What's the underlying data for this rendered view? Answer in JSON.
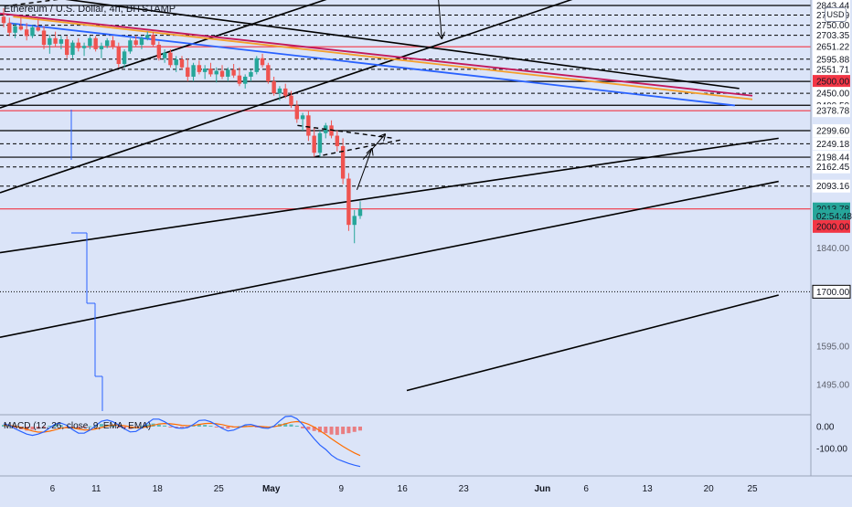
{
  "header": {
    "title": "Ethereum / U.S. Dollar, 4h, BITSTAMP",
    "currency": "USD"
  },
  "macd": {
    "title": "MACD (12, 26, close, 9, EMA, EMA)",
    "ticks": [
      "0.00",
      "-100.00"
    ]
  },
  "colors": {
    "background": "#dbe4f8",
    "up": "#26a69a",
    "down": "#ef5350",
    "red_line": "#f23645",
    "magenta_line": "#c2185b",
    "orange_line": "#f59f2b",
    "blue_line": "#2962ff",
    "trend_line": "#000000",
    "macd_line": "#2962ff",
    "signal_line": "#ff6d00"
  },
  "chart_data": {
    "type": "candlestick",
    "title": "Ethereum / U.S. Dollar, 4h, BITSTAMP",
    "yscale": "log",
    "price_axis_labels": [
      {
        "label": "2843.44",
        "value": 2843.44
      },
      {
        "label": "2797.39",
        "value": 2797.39
      },
      {
        "label": "2750.00",
        "value": 2750.0
      },
      {
        "label": "2703.35",
        "value": 2703.35
      },
      {
        "label": "2651.22",
        "value": 2651.22
      },
      {
        "label": "2595.88",
        "value": 2595.88
      },
      {
        "label": "2551.71",
        "value": 2551.71
      },
      {
        "label": "2500.00",
        "value": 2500.0,
        "style": "red"
      },
      {
        "label": "2450.00",
        "value": 2450.0
      },
      {
        "label": "2400.59",
        "value": 2400.59
      },
      {
        "label": "2378.78",
        "value": 2378.78
      },
      {
        "label": "2299.60",
        "value": 2299.6
      },
      {
        "label": "2249.18",
        "value": 2249.18
      },
      {
        "label": "2198.44",
        "value": 2198.44
      },
      {
        "label": "2162.45",
        "value": 2162.45
      },
      {
        "label": "2093.16",
        "value": 2093.16
      },
      {
        "label": "2013.78",
        "value": 2013.78,
        "style": "last"
      },
      {
        "label": "02:54:48",
        "value": 1990,
        "style": "timer"
      },
      {
        "label": "2000.00",
        "value": 1955,
        "style": "red"
      },
      {
        "label": "1840.00",
        "value": 1885,
        "style": "muted"
      },
      {
        "label": "1700.00",
        "value": 1750,
        "style": "black"
      },
      {
        "label": "1595.00",
        "value": 1595.0,
        "style": "muted"
      },
      {
        "label": "1495.00",
        "value": 1495.0,
        "style": "muted"
      }
    ],
    "x_ticks": [
      {
        "label": "6",
        "day": 6
      },
      {
        "label": "11",
        "day": 11
      },
      {
        "label": "18",
        "day": 18
      },
      {
        "label": "25",
        "day": 25
      },
      {
        "label": "May",
        "day": 31,
        "bold": true
      },
      {
        "label": "9",
        "day": 39
      },
      {
        "label": "16",
        "day": 46
      },
      {
        "label": "23",
        "day": 53
      },
      {
        "label": "Jun",
        "day": 62,
        "bold": true
      },
      {
        "label": "6",
        "day": 67
      },
      {
        "label": "13",
        "day": 74
      },
      {
        "label": "20",
        "day": 81
      },
      {
        "label": "25",
        "day": 86
      }
    ],
    "horizontal_levels": [
      {
        "price": 2843.44,
        "style": "solid-black"
      },
      {
        "price": 2797.39,
        "style": "dashed-black"
      },
      {
        "price": 2750.0,
        "style": "dashed-black"
      },
      {
        "price": 2703.35,
        "style": "dashed-black"
      },
      {
        "price": 2651.22,
        "style": "solid-red"
      },
      {
        "price": 2595.88,
        "style": "dashed-black"
      },
      {
        "price": 2551.71,
        "style": "dashed-black"
      },
      {
        "price": 2500.0,
        "style": "solid-black"
      },
      {
        "price": 2450.0,
        "style": "dashed-black"
      },
      {
        "price": 2400.59,
        "style": "solid-black"
      },
      {
        "price": 2378.78,
        "style": "solid-red"
      },
      {
        "price": 2299.6,
        "style": "solid-black"
      },
      {
        "price": 2249.18,
        "style": "dashed-black"
      },
      {
        "price": 2198.44,
        "style": "solid-black"
      },
      {
        "price": 2162.45,
        "style": "dashed-black"
      },
      {
        "price": 2093.16,
        "style": "dashed-black"
      },
      {
        "price": 2013.78,
        "style": "solid-red"
      },
      {
        "price": 1750,
        "style": "dotted-black"
      }
    ],
    "trend_lines": [
      {
        "p1": [
          0,
          2390
        ],
        "p2": [
          37.8,
          2880
        ],
        "color": "black"
      },
      {
        "p1": [
          0,
          2070
        ],
        "p2": [
          70,
          2940
        ],
        "color": "black"
      },
      {
        "p1": [
          0,
          1870
        ],
        "p2": [
          89,
          2270
        ],
        "color": "black"
      },
      {
        "p1": [
          0,
          1620
        ],
        "p2": [
          89,
          2110
        ],
        "color": "black"
      },
      {
        "p1": [
          46.5,
          1480
        ],
        "p2": [
          89,
          1740
        ],
        "color": "black"
      },
      {
        "p1": [
          2.8,
          2900
        ],
        "p2": [
          84.5,
          2470
        ],
        "color": "black"
      },
      {
        "p1": [
          0,
          2805
        ],
        "p2": [
          86,
          2440
        ],
        "color": "magenta"
      },
      {
        "p1": [
          1.5,
          2790
        ],
        "p2": [
          86,
          2425
        ],
        "color": "orange"
      },
      {
        "p1": [
          1,
          2760
        ],
        "p2": [
          84,
          2400
        ],
        "color": "blue"
      }
    ],
    "candles_ohlc": [
      [
        2790,
        2830,
        2740,
        2760
      ],
      [
        2760,
        2785,
        2700,
        2715
      ],
      [
        2715,
        2760,
        2690,
        2745
      ],
      [
        2745,
        2790,
        2725,
        2730
      ],
      [
        2730,
        2760,
        2680,
        2700
      ],
      [
        2700,
        2750,
        2690,
        2740
      ],
      [
        2740,
        2780,
        2720,
        2725
      ],
      [
        2725,
        2745,
        2640,
        2660
      ],
      [
        2660,
        2705,
        2620,
        2690
      ],
      [
        2690,
        2720,
        2650,
        2665
      ],
      [
        2665,
        2700,
        2640,
        2685
      ],
      [
        2685,
        2700,
        2600,
        2615
      ],
      [
        2615,
        2680,
        2600,
        2670
      ],
      [
        2670,
        2690,
        2630,
        2645
      ],
      [
        2645,
        2670,
        2610,
        2655
      ],
      [
        2655,
        2700,
        2640,
        2690
      ],
      [
        2690,
        2700,
        2630,
        2640
      ],
      [
        2640,
        2670,
        2600,
        2655
      ],
      [
        2655,
        2690,
        2645,
        2680
      ],
      [
        2680,
        2700,
        2640,
        2650
      ],
      [
        2650,
        2670,
        2560,
        2575
      ],
      [
        2575,
        2640,
        2560,
        2630
      ],
      [
        2630,
        2690,
        2620,
        2680
      ],
      [
        2680,
        2700,
        2650,
        2660
      ],
      [
        2660,
        2700,
        2640,
        2690
      ],
      [
        2690,
        2720,
        2680,
        2705
      ],
      [
        2705,
        2720,
        2650,
        2660
      ],
      [
        2660,
        2675,
        2590,
        2600
      ],
      [
        2600,
        2640,
        2580,
        2625
      ],
      [
        2625,
        2640,
        2560,
        2570
      ],
      [
        2570,
        2610,
        2540,
        2595
      ],
      [
        2595,
        2610,
        2550,
        2560
      ],
      [
        2560,
        2600,
        2500,
        2520
      ],
      [
        2520,
        2580,
        2500,
        2570
      ],
      [
        2570,
        2590,
        2530,
        2540
      ],
      [
        2540,
        2570,
        2510,
        2555
      ],
      [
        2555,
        2580,
        2520,
        2530
      ],
      [
        2530,
        2560,
        2495,
        2545
      ],
      [
        2545,
        2570,
        2510,
        2520
      ],
      [
        2520,
        2560,
        2500,
        2550
      ],
      [
        2550,
        2575,
        2515,
        2525
      ],
      [
        2525,
        2560,
        2480,
        2490
      ],
      [
        2490,
        2530,
        2470,
        2520
      ],
      [
        2520,
        2550,
        2500,
        2540
      ],
      [
        2540,
        2610,
        2530,
        2600
      ],
      [
        2600,
        2620,
        2560,
        2570
      ],
      [
        2570,
        2580,
        2490,
        2500
      ],
      [
        2500,
        2520,
        2440,
        2450
      ],
      [
        2450,
        2480,
        2420,
        2470
      ],
      [
        2470,
        2490,
        2430,
        2440
      ],
      [
        2440,
        2460,
        2390,
        2400
      ],
      [
        2400,
        2420,
        2330,
        2345
      ],
      [
        2345,
        2370,
        2300,
        2360
      ],
      [
        2360,
        2380,
        2260,
        2280
      ],
      [
        2280,
        2310,
        2200,
        2215
      ],
      [
        2215,
        2300,
        2200,
        2290
      ],
      [
        2290,
        2330,
        2270,
        2320
      ],
      [
        2320,
        2340,
        2270,
        2280
      ],
      [
        2280,
        2300,
        2220,
        2240
      ],
      [
        2240,
        2270,
        2100,
        2120
      ],
      [
        2120,
        2140,
        1940,
        1960
      ],
      [
        1960,
        2010,
        1900,
        1990
      ],
      [
        1990,
        2040,
        1980,
        2013.78
      ]
    ],
    "annotations": [
      {
        "type": "arrow",
        "from": [
          50,
          2930
        ],
        "to": [
          50.5,
          2690
        ]
      },
      {
        "type": "arrow",
        "from": [
          40.8,
          2080
        ],
        "to": [
          42.5,
          2230
        ]
      },
      {
        "type": "arrow",
        "from": [
          41.5,
          2190
        ],
        "to": [
          44,
          2285
        ]
      },
      {
        "type": "dashed",
        "from": [
          34,
          2320
        ],
        "to": [
          45,
          2270
        ]
      },
      {
        "type": "dashed",
        "from": [
          36,
          2200
        ],
        "to": [
          46,
          2265
        ]
      },
      {
        "type": "dashed",
        "from": [
          0.5,
          2840
        ],
        "to": [
          8,
          2880
        ]
      }
    ],
    "macd": {
      "title": "MACD (12, 26, close, 9, EMA, EMA)",
      "ticks": [
        "0.00",
        "-100.00"
      ],
      "histogram": [
        8,
        5,
        -6,
        -12,
        -18,
        -14,
        -10,
        -6,
        4,
        10,
        6,
        -3,
        -8,
        -12,
        -6,
        2,
        7,
        12,
        9,
        4,
        -2,
        -8,
        -11,
        -6,
        3,
        10,
        14,
        9,
        5,
        -3,
        -6,
        -4,
        -2,
        6,
        12,
        8,
        4,
        -2,
        -6,
        -9,
        -4,
        2,
        5,
        3,
        -2,
        -4,
        -2,
        4,
        12,
        16,
        10,
        4,
        -8,
        -14,
        -20,
        -26,
        -30,
        -36,
        -38,
        -34,
        -30,
        -24,
        -18
      ],
      "macd_line": [
        12,
        6,
        -10,
        -22,
        -34,
        -40,
        -34,
        -24,
        -6,
        12,
        16,
        6,
        -14,
        -30,
        -30,
        -16,
        4,
        24,
        30,
        22,
        8,
        -10,
        -24,
        -22,
        -6,
        16,
        34,
        34,
        22,
        6,
        -6,
        -8,
        -4,
        10,
        28,
        30,
        22,
        8,
        -8,
        -20,
        -16,
        -4,
        8,
        10,
        2,
        -6,
        -8,
        2,
        26,
        46,
        48,
        36,
        10,
        -24,
        -56,
        -84,
        -104,
        -130,
        -148,
        -158,
        -168,
        -176,
        -182
      ],
      "signal_line": [
        6,
        5,
        2,
        -4,
        -12,
        -20,
        -25,
        -25,
        -21,
        -14,
        -7,
        -4,
        -6,
        -11,
        -15,
        -15,
        -11,
        -4,
        3,
        7,
        7,
        4,
        -1,
        -5,
        -5,
        -1,
        6,
        12,
        14,
        13,
        10,
        6,
        4,
        5,
        10,
        14,
        15,
        13,
        9,
        3,
        -1,
        -2,
        0,
        2,
        2,
        0,
        -2,
        -1,
        5,
        13,
        20,
        23,
        20,
        11,
        -2,
        -19,
        -36,
        -55,
        -73,
        -90,
        -106,
        -120,
        -132
      ]
    }
  }
}
